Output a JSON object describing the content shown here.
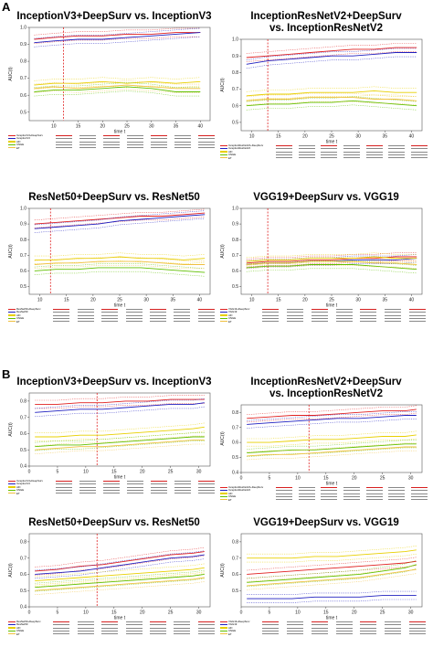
{
  "sections": [
    {
      "label": "A",
      "panels": [
        {
          "title": "InceptionV3+DeepSurv vs. InceptionV3",
          "ylabel": "AUC(t)",
          "xlabel": "time t",
          "table_rows": [
            "InceptionV3+DeepSurv",
            "InceptionV3",
            "AFI",
            "CNGE",
            "ET"
          ]
        },
        {
          "title": "InceptionResNetV2+DeepSurv\nvs. InceptionResNetV2",
          "ylabel": "AUC(t)",
          "xlabel": "time t",
          "table_rows": [
            "InceptionResNetV2+DeepSurv",
            "InceptionResNetV2",
            "AFI",
            "CNGE",
            "ET"
          ]
        },
        {
          "title": "ResNet50+DeepSurv vs. ResNet50",
          "ylabel": "AUC(t)",
          "xlabel": "time t",
          "table_rows": [
            "ResNet50+DeepSurv",
            "ResNet50",
            "AFI",
            "CNGE",
            "ET"
          ]
        },
        {
          "title": "VGG19+DeepSurv vs. VGG19",
          "ylabel": "AUC(t)",
          "xlabel": "time t",
          "table_rows": [
            "VGG19+DeepSurv",
            "VGG19",
            "AFI",
            "CNGE",
            "ET"
          ]
        }
      ]
    },
    {
      "label": "B",
      "panels": [
        {
          "title": "InceptionV3+DeepSurv vs. InceptionV3",
          "ylabel": "AUC(t)",
          "xlabel": "time t",
          "table_rows": [
            "InceptionV3+DeepSurv",
            "InceptionV3",
            "AFI",
            "CNGE",
            "ET"
          ]
        },
        {
          "title": "InceptionResNetV2+DeepSurv\nvs. InceptionResNetV2",
          "ylabel": "AUC(t)",
          "xlabel": "time t",
          "table_rows": [
            "InceptionResNetV2+DeepSurv",
            "InceptionResNetV2",
            "AFI",
            "CNGE",
            "ET"
          ]
        },
        {
          "title": "ResNet50+DeepSurv vs. ResNet50",
          "ylabel": "AUC(t)",
          "xlabel": "time t",
          "table_rows": [
            "ResNet50+DeepSurv",
            "ResNet50",
            "AFI",
            "CNGE",
            "ET"
          ]
        },
        {
          "title": "VGG19+DeepSurv vs. VGG19",
          "ylabel": "AUC(t)",
          "xlabel": "time t",
          "table_rows": [
            "VGG19+DeepSurv",
            "VGG19",
            "AFI",
            "CNGE",
            "ET"
          ]
        }
      ]
    }
  ],
  "colors": {
    "deepsurv": "#e02020",
    "cnn": "#2020c0",
    "afi": "#e8d000",
    "cnge": "#60c000",
    "et": "#f0c040",
    "marker": "#e02020"
  },
  "chart_data": [
    {
      "type": "line",
      "section": "A",
      "panel": 1,
      "title": "InceptionV3+DeepSurv vs. InceptionV3",
      "ylabel": "AUC(t)",
      "xlabel": "time t",
      "xlim": [
        5,
        42
      ],
      "ylim": [
        0.45,
        1.0
      ],
      "xticks": [
        10,
        15,
        20,
        25,
        30,
        35,
        40
      ],
      "yticks": [
        0.5,
        0.6,
        0.7,
        0.8,
        0.9,
        1.0
      ],
      "vline": 12,
      "x": [
        6,
        10,
        15,
        20,
        25,
        30,
        35,
        40
      ],
      "series": [
        {
          "name": "InceptionV3+DeepSurv",
          "color": "deepsurv",
          "values": [
            0.93,
            0.94,
            0.95,
            0.95,
            0.96,
            0.96,
            0.97,
            0.97
          ]
        },
        {
          "name": "InceptionV3",
          "color": "cnn",
          "values": [
            0.91,
            0.92,
            0.93,
            0.93,
            0.94,
            0.95,
            0.96,
            0.97
          ]
        },
        {
          "name": "AFI",
          "color": "afi",
          "values": [
            0.66,
            0.67,
            0.67,
            0.68,
            0.67,
            0.68,
            0.67,
            0.68
          ]
        },
        {
          "name": "CNGE",
          "color": "cnge",
          "values": [
            0.62,
            0.63,
            0.63,
            0.64,
            0.65,
            0.64,
            0.62,
            0.62
          ]
        },
        {
          "name": "ET",
          "color": "et",
          "values": [
            0.64,
            0.65,
            0.64,
            0.65,
            0.66,
            0.65,
            0.64,
            0.64
          ]
        }
      ]
    },
    {
      "type": "line",
      "section": "A",
      "panel": 2,
      "title": "InceptionResNetV2+DeepSurv vs. InceptionResNetV2",
      "ylabel": "AUC(t)",
      "xlabel": "time t",
      "xlim": [
        8,
        42
      ],
      "ylim": [
        0.45,
        1.0
      ],
      "xticks": [
        10,
        15,
        20,
        25,
        30,
        35,
        40
      ],
      "yticks": [
        0.5,
        0.6,
        0.7,
        0.8,
        0.9,
        1.0
      ],
      "vline": 13,
      "x": [
        9,
        13,
        17,
        21,
        25,
        29,
        33,
        37,
        41
      ],
      "series": [
        {
          "name": "InceptionResNetV2+DeepSurv",
          "color": "deepsurv",
          "values": [
            0.89,
            0.9,
            0.91,
            0.92,
            0.93,
            0.94,
            0.94,
            0.95,
            0.95
          ]
        },
        {
          "name": "InceptionResNetV2",
          "color": "cnn",
          "values": [
            0.85,
            0.87,
            0.88,
            0.89,
            0.9,
            0.9,
            0.91,
            0.92,
            0.92
          ]
        },
        {
          "name": "AFI",
          "color": "afi",
          "values": [
            0.66,
            0.67,
            0.67,
            0.68,
            0.68,
            0.68,
            0.69,
            0.68,
            0.68
          ]
        },
        {
          "name": "CNGE",
          "color": "cnge",
          "values": [
            0.6,
            0.61,
            0.61,
            0.62,
            0.62,
            0.63,
            0.62,
            0.61,
            0.6
          ]
        },
        {
          "name": "ET",
          "color": "et",
          "values": [
            0.63,
            0.64,
            0.64,
            0.65,
            0.65,
            0.65,
            0.64,
            0.64,
            0.63
          ]
        }
      ]
    },
    {
      "type": "line",
      "section": "A",
      "panel": 3,
      "title": "ResNet50+DeepSurv vs. ResNet50",
      "ylabel": "AUC(t)",
      "xlabel": "time t",
      "xlim": [
        8,
        42
      ],
      "ylim": [
        0.45,
        1.0
      ],
      "xticks": [
        10,
        15,
        20,
        25,
        30,
        35,
        40
      ],
      "yticks": [
        0.5,
        0.6,
        0.7,
        0.8,
        0.9,
        1.0
      ],
      "vline": 12,
      "x": [
        9,
        13,
        17,
        21,
        25,
        29,
        33,
        37,
        41
      ],
      "series": [
        {
          "name": "ResNet50+DeepSurv",
          "color": "deepsurv",
          "values": [
            0.9,
            0.91,
            0.92,
            0.93,
            0.94,
            0.95,
            0.95,
            0.96,
            0.97
          ]
        },
        {
          "name": "ResNet50",
          "color": "cnn",
          "values": [
            0.87,
            0.88,
            0.89,
            0.9,
            0.92,
            0.93,
            0.94,
            0.95,
            0.96
          ]
        },
        {
          "name": "AFI",
          "color": "afi",
          "values": [
            0.67,
            0.67,
            0.68,
            0.68,
            0.69,
            0.68,
            0.68,
            0.67,
            0.68
          ]
        },
        {
          "name": "CNGE",
          "color": "cnge",
          "values": [
            0.6,
            0.61,
            0.61,
            0.62,
            0.62,
            0.62,
            0.61,
            0.6,
            0.59
          ]
        },
        {
          "name": "ET",
          "color": "et",
          "values": [
            0.64,
            0.65,
            0.65,
            0.66,
            0.66,
            0.66,
            0.65,
            0.64,
            0.64
          ]
        }
      ]
    },
    {
      "type": "line",
      "section": "A",
      "panel": 4,
      "title": "VGG19+DeepSurv vs. VGG19",
      "ylabel": "AUC(t)",
      "xlabel": "time t",
      "xlim": [
        8,
        42
      ],
      "ylim": [
        0.45,
        1.0
      ],
      "xticks": [
        10,
        15,
        20,
        25,
        30,
        35,
        40
      ],
      "yticks": [
        0.5,
        0.6,
        0.7,
        0.8,
        0.9,
        1.0
      ],
      "vline": 13,
      "x": [
        9,
        13,
        17,
        21,
        25,
        29,
        33,
        37,
        41
      ],
      "series": [
        {
          "name": "VGG19+DeepSurv",
          "color": "deepsurv",
          "values": [
            0.65,
            0.66,
            0.66,
            0.67,
            0.67,
            0.68,
            0.68,
            0.69,
            0.69
          ]
        },
        {
          "name": "VGG19",
          "color": "cnn",
          "values": [
            0.64,
            0.65,
            0.65,
            0.66,
            0.66,
            0.67,
            0.67,
            0.67,
            0.68
          ]
        },
        {
          "name": "AFI",
          "color": "afi",
          "values": [
            0.66,
            0.67,
            0.67,
            0.68,
            0.68,
            0.68,
            0.69,
            0.68,
            0.68
          ]
        },
        {
          "name": "CNGE",
          "color": "cnge",
          "values": [
            0.62,
            0.63,
            0.63,
            0.64,
            0.64,
            0.64,
            0.63,
            0.62,
            0.61
          ]
        },
        {
          "name": "ET",
          "color": "et",
          "values": [
            0.64,
            0.65,
            0.65,
            0.66,
            0.66,
            0.66,
            0.65,
            0.65,
            0.64
          ]
        }
      ]
    },
    {
      "type": "line",
      "section": "B",
      "panel": 1,
      "title": "InceptionV3+DeepSurv vs. InceptionV3",
      "ylabel": "AUC(t)",
      "xlabel": "time t",
      "xlim": [
        0,
        32
      ],
      "ylim": [
        0.4,
        0.85
      ],
      "xticks": [
        0,
        5,
        10,
        15,
        20,
        25,
        30
      ],
      "yticks": [
        0.4,
        0.5,
        0.6,
        0.7,
        0.8
      ],
      "vline": 12,
      "x": [
        1,
        5,
        9,
        13,
        17,
        21,
        25,
        29,
        31
      ],
      "series": [
        {
          "name": "InceptionV3+DeepSurv",
          "color": "deepsurv",
          "values": [
            0.78,
            0.78,
            0.79,
            0.79,
            0.8,
            0.8,
            0.81,
            0.81,
            0.81
          ]
        },
        {
          "name": "InceptionV3",
          "color": "cnn",
          "values": [
            0.73,
            0.74,
            0.75,
            0.75,
            0.76,
            0.77,
            0.78,
            0.78,
            0.79
          ]
        },
        {
          "name": "AFI",
          "color": "afi",
          "values": [
            0.58,
            0.58,
            0.59,
            0.59,
            0.6,
            0.61,
            0.62,
            0.63,
            0.64
          ]
        },
        {
          "name": "CNGE",
          "color": "cnge",
          "values": [
            0.52,
            0.53,
            0.53,
            0.54,
            0.55,
            0.56,
            0.57,
            0.58,
            0.58
          ]
        },
        {
          "name": "ET",
          "color": "et",
          "values": [
            0.5,
            0.51,
            0.52,
            0.52,
            0.53,
            0.54,
            0.55,
            0.56,
            0.56
          ]
        }
      ]
    },
    {
      "type": "line",
      "section": "B",
      "panel": 2,
      "title": "InceptionResNetV2+DeepSurv vs. InceptionResNetV2",
      "ylabel": "AUC(t)",
      "xlabel": "time t",
      "xlim": [
        0,
        32
      ],
      "ylim": [
        0.4,
        0.85
      ],
      "xticks": [
        0,
        5,
        10,
        15,
        20,
        25,
        30
      ],
      "yticks": [
        0.4,
        0.5,
        0.6,
        0.7,
        0.8
      ],
      "vline": 12,
      "x": [
        1,
        5,
        9,
        13,
        17,
        21,
        25,
        29,
        31
      ],
      "series": [
        {
          "name": "InceptionResNetV2+DeepSurv",
          "color": "deepsurv",
          "values": [
            0.76,
            0.77,
            0.78,
            0.78,
            0.79,
            0.8,
            0.81,
            0.81,
            0.82
          ]
        },
        {
          "name": "InceptionResNetV2",
          "color": "cnn",
          "values": [
            0.72,
            0.73,
            0.74,
            0.75,
            0.76,
            0.76,
            0.77,
            0.78,
            0.78
          ]
        },
        {
          "name": "AFI",
          "color": "afi",
          "values": [
            0.6,
            0.6,
            0.61,
            0.62,
            0.62,
            0.63,
            0.64,
            0.64,
            0.65
          ]
        },
        {
          "name": "CNGE",
          "color": "cnge",
          "values": [
            0.53,
            0.54,
            0.55,
            0.55,
            0.56,
            0.57,
            0.58,
            0.59,
            0.59
          ]
        },
        {
          "name": "ET",
          "color": "et",
          "values": [
            0.51,
            0.52,
            0.52,
            0.53,
            0.54,
            0.55,
            0.56,
            0.57,
            0.57
          ]
        }
      ]
    },
    {
      "type": "line",
      "section": "B",
      "panel": 3,
      "title": "ResNet50+DeepSurv vs. ResNet50",
      "ylabel": "AUC(t)",
      "xlabel": "time t",
      "xlim": [
        0,
        32
      ],
      "ylim": [
        0.4,
        0.85
      ],
      "xticks": [
        0,
        5,
        10,
        15,
        20,
        25,
        30
      ],
      "yticks": [
        0.4,
        0.5,
        0.6,
        0.7,
        0.8
      ],
      "vline": 12,
      "x": [
        1,
        5,
        9,
        13,
        17,
        21,
        25,
        29,
        31
      ],
      "series": [
        {
          "name": "ResNet50+DeepSurv",
          "color": "deepsurv",
          "values": [
            0.62,
            0.63,
            0.65,
            0.66,
            0.68,
            0.7,
            0.72,
            0.73,
            0.74
          ]
        },
        {
          "name": "ResNet50",
          "color": "cnn",
          "values": [
            0.6,
            0.61,
            0.62,
            0.64,
            0.66,
            0.68,
            0.7,
            0.71,
            0.72
          ]
        },
        {
          "name": "AFI",
          "color": "afi",
          "values": [
            0.56,
            0.57,
            0.58,
            0.59,
            0.6,
            0.61,
            0.62,
            0.63,
            0.64
          ]
        },
        {
          "name": "CNGE",
          "color": "cnge",
          "values": [
            0.52,
            0.53,
            0.54,
            0.55,
            0.56,
            0.57,
            0.58,
            0.59,
            0.6
          ]
        },
        {
          "name": "ET",
          "color": "et",
          "values": [
            0.5,
            0.51,
            0.52,
            0.53,
            0.54,
            0.55,
            0.56,
            0.57,
            0.58
          ]
        }
      ]
    },
    {
      "type": "line",
      "section": "B",
      "panel": 4,
      "title": "VGG19+DeepSurv vs. VGG19",
      "ylabel": "AUC(t)",
      "xlabel": "time t",
      "xlim": [
        0,
        32
      ],
      "ylim": [
        0.4,
        0.85
      ],
      "xticks": [
        0,
        5,
        10,
        15,
        20,
        25,
        30
      ],
      "yticks": [
        0.5,
        0.6,
        0.7,
        0.8
      ],
      "x": [
        1,
        5,
        9,
        13,
        17,
        21,
        25,
        29,
        31
      ],
      "series": [
        {
          "name": "VGG19+DeepSurv",
          "color": "deepsurv",
          "values": [
            0.6,
            0.61,
            0.62,
            0.63,
            0.64,
            0.65,
            0.66,
            0.67,
            0.68
          ]
        },
        {
          "name": "VGG19",
          "color": "cnn",
          "values": [
            0.45,
            0.45,
            0.45,
            0.46,
            0.46,
            0.46,
            0.47,
            0.47,
            0.47
          ]
        },
        {
          "name": "AFI",
          "color": "afi",
          "values": [
            0.7,
            0.7,
            0.7,
            0.71,
            0.71,
            0.72,
            0.73,
            0.74,
            0.75
          ]
        },
        {
          "name": "CNGE",
          "color": "cnge",
          "values": [
            0.55,
            0.56,
            0.57,
            0.58,
            0.59,
            0.6,
            0.62,
            0.64,
            0.66
          ]
        },
        {
          "name": "ET",
          "color": "et",
          "values": [
            0.53,
            0.54,
            0.55,
            0.56,
            0.57,
            0.58,
            0.6,
            0.62,
            0.63
          ]
        }
      ]
    }
  ]
}
